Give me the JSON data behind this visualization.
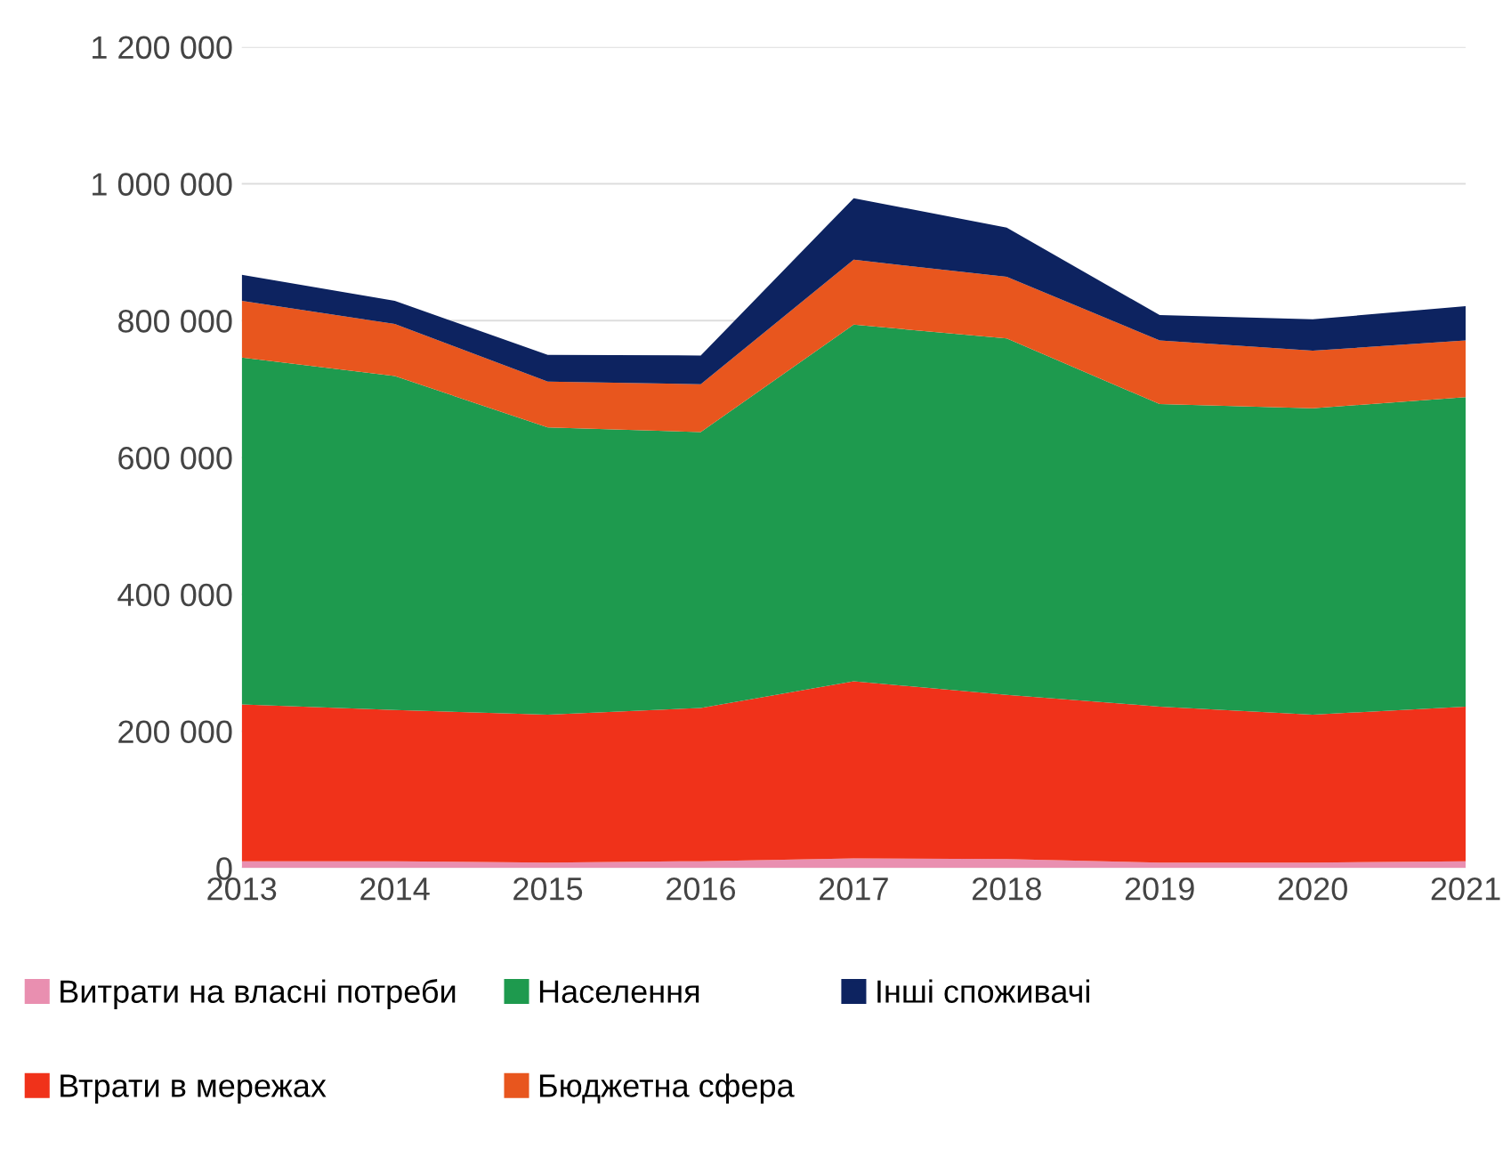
{
  "chart_data": {
    "type": "area",
    "stacked": true,
    "x": [
      2013,
      2014,
      2015,
      2016,
      2017,
      2018,
      2019,
      2020,
      2021
    ],
    "series": [
      {
        "name": "Витрати на власні потреби",
        "color": "#e98fb0",
        "values": [
          10000,
          10000,
          8000,
          10000,
          14000,
          13000,
          8000,
          8000,
          10000
        ]
      },
      {
        "name": "Втрати в мережах",
        "color": "#f0321a",
        "values": [
          229000,
          221000,
          216000,
          224000,
          259000,
          240000,
          228000,
          216000,
          226000
        ]
      },
      {
        "name": "Населення",
        "color": "#1e9a4e",
        "values": [
          507000,
          488000,
          420000,
          403000,
          521000,
          521000,
          442000,
          448000,
          452000
        ]
      },
      {
        "name": "Бюджетна сфера",
        "color": "#e8561e",
        "values": [
          83000,
          76000,
          67000,
          70000,
          95000,
          90000,
          93000,
          84000,
          83000
        ]
      },
      {
        "name": "Інші споживачі",
        "color": "#0d2360",
        "values": [
          38000,
          34000,
          39000,
          42000,
          90000,
          72000,
          37000,
          46000,
          50000
        ]
      }
    ],
    "xlim": [
      2013,
      2021
    ],
    "xticks": [
      2013,
      2014,
      2015,
      2016,
      2017,
      2018,
      2019,
      2020,
      2021
    ],
    "ylim": [
      0,
      1200000
    ],
    "yticks": [
      0,
      {
        "value": 200000,
        "label": "200 000"
      },
      {
        "value": 400000,
        "label": "400 000"
      },
      {
        "value": 600000,
        "label": "600 000"
      },
      {
        "value": 800000,
        "label": "800 000"
      },
      {
        "value": 1000000,
        "label": "1 000 000"
      },
      {
        "value": 1200000,
        "label": "1 200 000"
      }
    ],
    "grid": "y",
    "legend": "bottom"
  }
}
